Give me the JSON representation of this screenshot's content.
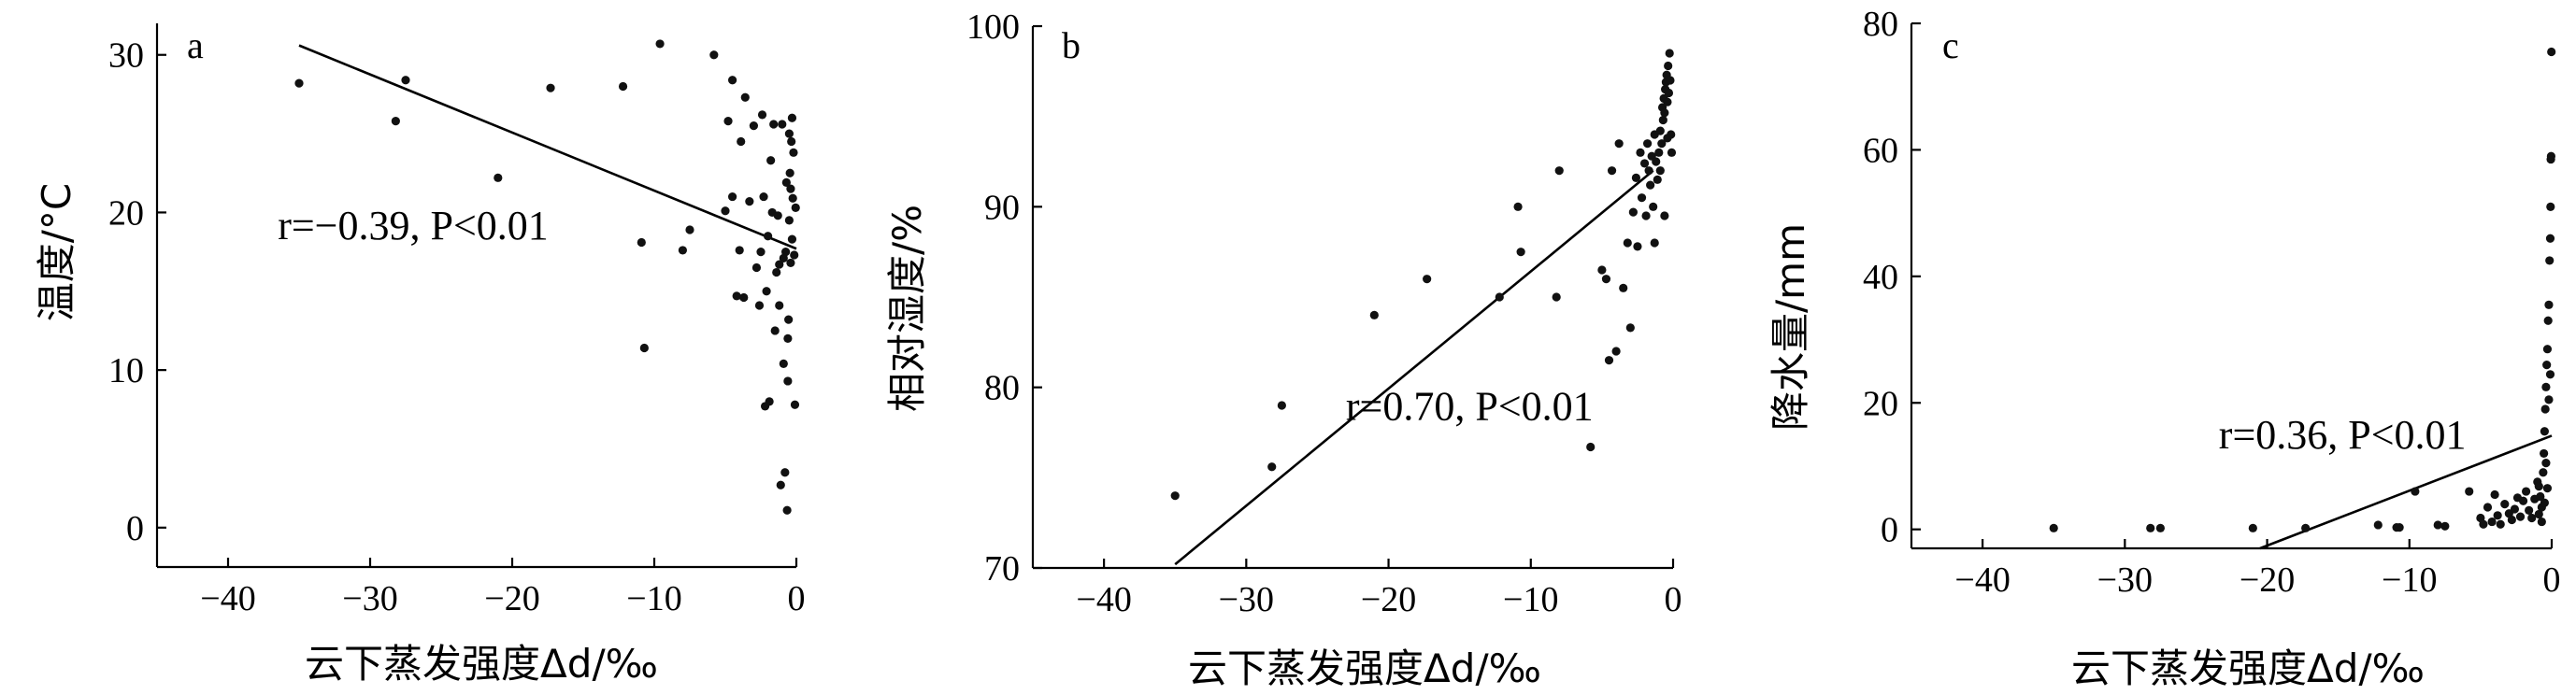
{
  "chart_data": [
    {
      "type": "scatter",
      "panel_label": "a",
      "xlabel": "云下蒸发强度Δd/‰",
      "ylabel": "温度/°C",
      "xlim": [
        -45,
        0
      ],
      "ylim": [
        -2.5,
        32
      ],
      "xticks": [
        "−40",
        "−30",
        "−20",
        "−10",
        "0"
      ],
      "xtick_values": [
        -40,
        -30,
        -20,
        -10,
        0
      ],
      "yticks": [
        "0",
        "10",
        "20",
        "30"
      ],
      "ytick_values": [
        0,
        10,
        20,
        30
      ],
      "annotation": "r=−0.39, P<0.01",
      "annotation_pos": {
        "x": -36.5,
        "y": 18.3
      },
      "fit_line": {
        "x": [
          -35,
          0
        ],
        "y": [
          30.6,
          17.7
        ]
      },
      "points": [
        [
          -35,
          28.2
        ],
        [
          -28.2,
          25.8
        ],
        [
          -27.5,
          28.4
        ],
        [
          -21,
          22.2
        ],
        [
          -17.3,
          27.9
        ],
        [
          -12.2,
          28
        ],
        [
          -10.9,
          18.1
        ],
        [
          -10.7,
          11.4
        ],
        [
          -9.6,
          30.7
        ],
        [
          -8,
          17.6
        ],
        [
          -7.5,
          18.9
        ],
        [
          -5.8,
          30
        ],
        [
          -5,
          20.1
        ],
        [
          -4.8,
          25.8
        ],
        [
          -4.5,
          28.4
        ],
        [
          -4.5,
          21
        ],
        [
          -4.2,
          14.7
        ],
        [
          -4,
          17.6
        ],
        [
          -3.9,
          24.5
        ],
        [
          -3.7,
          14.6
        ],
        [
          -3.6,
          27.3
        ],
        [
          -3.3,
          20.7
        ],
        [
          -3,
          25.5
        ],
        [
          -2.8,
          16.5
        ],
        [
          -2.6,
          14.1
        ],
        [
          -2.5,
          17.5
        ],
        [
          -2.4,
          26.2
        ],
        [
          -2.3,
          21
        ],
        [
          -2.2,
          7.7
        ],
        [
          -2.1,
          15
        ],
        [
          -2,
          18.5
        ],
        [
          -1.9,
          8
        ],
        [
          -1.8,
          23.3
        ],
        [
          -1.7,
          20
        ],
        [
          -1.6,
          25.6
        ],
        [
          -1.5,
          12.5
        ],
        [
          -1.4,
          16.2
        ],
        [
          -1.3,
          19.8
        ],
        [
          -1.2,
          14.1
        ],
        [
          -1.1,
          2.7
        ],
        [
          -1,
          25.6
        ],
        [
          -0.9,
          10.4
        ],
        [
          -0.8,
          3.5
        ],
        [
          -0.75,
          17.5
        ],
        [
          -0.7,
          21.9
        ],
        [
          -0.65,
          1.1
        ],
        [
          -0.6,
          9.3
        ],
        [
          -0.55,
          13.2
        ],
        [
          -0.5,
          19.5
        ],
        [
          -0.45,
          22.5
        ],
        [
          -0.4,
          16.8
        ],
        [
          -0.35,
          24.5
        ],
        [
          -0.3,
          18.3
        ],
        [
          -0.25,
          20.9
        ],
        [
          -0.2,
          23.8
        ],
        [
          -0.15,
          17.3
        ],
        [
          -0.1,
          7.8
        ],
        [
          -0.05,
          20.3
        ],
        [
          -0.3,
          26
        ],
        [
          -0.5,
          25
        ],
        [
          -0.6,
          12
        ],
        [
          -0.9,
          17.1
        ],
        [
          -1.2,
          16.7
        ],
        [
          -0.4,
          21.5
        ]
      ]
    },
    {
      "type": "scatter",
      "panel_label": "b",
      "xlabel": "云下蒸发强度Δd/‰",
      "ylabel": "相对湿度/%",
      "xlim": [
        -45,
        0
      ],
      "ylim": [
        70,
        100
      ],
      "xticks": [
        "−40",
        "−30",
        "−20",
        "−10",
        "0"
      ],
      "xtick_values": [
        -40,
        -30,
        -20,
        -10,
        0
      ],
      "yticks": [
        "70",
        "80",
        "90",
        "100"
      ],
      "ytick_values": [
        70,
        80,
        90,
        100
      ],
      "annotation": "r=0.70, P<0.01",
      "annotation_pos": {
        "x": -23,
        "y": 78.2
      },
      "fit_line": {
        "x": [
          -35,
          -1.4
        ],
        "y": [
          70.2,
          92
        ]
      },
      "points": [
        [
          -35,
          74
        ],
        [
          -28.2,
          75.6
        ],
        [
          -27.5,
          79
        ],
        [
          -21,
          84
        ],
        [
          -17.3,
          86
        ],
        [
          -12.2,
          85
        ],
        [
          -10.9,
          90
        ],
        [
          -10.7,
          87.5
        ],
        [
          -8,
          92
        ],
        [
          -8.2,
          85
        ],
        [
          -5.8,
          76.7
        ],
        [
          -5,
          86.5
        ],
        [
          -4.7,
          86
        ],
        [
          -4.5,
          81.5
        ],
        [
          -4.3,
          92
        ],
        [
          -4,
          82
        ],
        [
          -3.8,
          93.5
        ],
        [
          -3.5,
          85.5
        ],
        [
          -3.2,
          88
        ],
        [
          -3,
          83.3
        ],
        [
          -2.8,
          89.7
        ],
        [
          -2.6,
          91.6
        ],
        [
          -2.5,
          87.8
        ],
        [
          -2.3,
          93
        ],
        [
          -2.2,
          90.5
        ],
        [
          -2,
          92.4
        ],
        [
          -1.9,
          89.5
        ],
        [
          -1.8,
          93.5
        ],
        [
          -1.6,
          91.2
        ],
        [
          -1.5,
          92.8
        ],
        [
          -1.4,
          90
        ],
        [
          -1.3,
          94
        ],
        [
          -1.2,
          92.5
        ],
        [
          -1.1,
          91.5
        ],
        [
          -1,
          93
        ],
        [
          -0.9,
          94.2
        ],
        [
          -0.8,
          93.5
        ],
        [
          -0.75,
          95.5
        ],
        [
          -0.7,
          94.8
        ],
        [
          -0.65,
          96
        ],
        [
          -0.6,
          95.2
        ],
        [
          -0.55,
          96.5
        ],
        [
          -0.5,
          96.9
        ],
        [
          -0.45,
          97.3
        ],
        [
          -0.4,
          95.8
        ],
        [
          -0.35,
          97.8
        ],
        [
          -0.3,
          96.3
        ],
        [
          -0.25,
          98.5
        ],
        [
          -0.2,
          97
        ],
        [
          -0.15,
          94
        ],
        [
          -0.1,
          93
        ],
        [
          -0.6,
          89.5
        ],
        [
          -1.3,
          88
        ],
        [
          -1.7,
          92
        ],
        [
          -0.9,
          92
        ],
        [
          -0.4,
          93.8
        ]
      ]
    },
    {
      "type": "scatter",
      "panel_label": "c",
      "xlabel": "云下蒸发强度Δd/‰",
      "ylabel": "降水量/mm",
      "xlim": [
        -45,
        0
      ],
      "ylim": [
        -3,
        80
      ],
      "xticks": [
        "−40",
        "−30",
        "−20",
        "−10",
        "0"
      ],
      "xtick_values": [
        -40,
        -30,
        -20,
        -10,
        0
      ],
      "yticks": [
        "0",
        "20",
        "40",
        "60",
        "80"
      ],
      "ytick_values": [
        0,
        20,
        40,
        60,
        80
      ],
      "annotation": "r=0.36, P<0.01",
      "annotation_pos": {
        "x": -23.4,
        "y": 12.8
      },
      "fit_line": {
        "x": [
          -20.5,
          0
        ],
        "y": [
          -3,
          14.8
        ]
      },
      "points": [
        [
          -35,
          0.2
        ],
        [
          -28.2,
          0.2
        ],
        [
          -27.5,
          0.2
        ],
        [
          -21,
          0.2
        ],
        [
          -17.3,
          0.2
        ],
        [
          -12.2,
          0.7
        ],
        [
          -10.9,
          0.3
        ],
        [
          -10.7,
          0.3
        ],
        [
          -9.6,
          6
        ],
        [
          -8,
          0.7
        ],
        [
          -7.5,
          0.5
        ],
        [
          -5.8,
          6
        ],
        [
          -5,
          1.8
        ],
        [
          -4.8,
          0.8
        ],
        [
          -4.5,
          3.5
        ],
        [
          -4.2,
          1.2
        ],
        [
          -4,
          5.5
        ],
        [
          -3.8,
          2.2
        ],
        [
          -3.6,
          0.8
        ],
        [
          -3.3,
          4
        ],
        [
          -3,
          2.5
        ],
        [
          -2.8,
          1.5
        ],
        [
          -2.6,
          3.2
        ],
        [
          -2.4,
          5
        ],
        [
          -2.2,
          2
        ],
        [
          -2,
          4.5
        ],
        [
          -1.8,
          6
        ],
        [
          -1.6,
          3
        ],
        [
          -1.4,
          1.8
        ],
        [
          -1.2,
          4.8
        ],
        [
          -1,
          7.5
        ],
        [
          -0.9,
          2.4
        ],
        [
          -0.8,
          5.2
        ],
        [
          -0.7,
          3.5
        ],
        [
          -0.6,
          9
        ],
        [
          -0.55,
          12
        ],
        [
          -0.5,
          15.5
        ],
        [
          -0.45,
          19
        ],
        [
          -0.4,
          22.5
        ],
        [
          -0.35,
          26
        ],
        [
          -0.3,
          28.5
        ],
        [
          -0.25,
          33
        ],
        [
          -0.2,
          35.5
        ],
        [
          -0.15,
          42.5
        ],
        [
          -0.1,
          46
        ],
        [
          -0.08,
          51
        ],
        [
          -0.06,
          58.5
        ],
        [
          -0.04,
          59
        ],
        [
          -0.02,
          75.5
        ],
        [
          -0.3,
          6.5
        ],
        [
          -0.4,
          10.5
        ],
        [
          -0.5,
          4.2
        ],
        [
          -0.2,
          20.5
        ],
        [
          -0.1,
          24.5
        ],
        [
          -0.7,
          1.2
        ],
        [
          -0.9,
          6.8
        ]
      ]
    }
  ]
}
